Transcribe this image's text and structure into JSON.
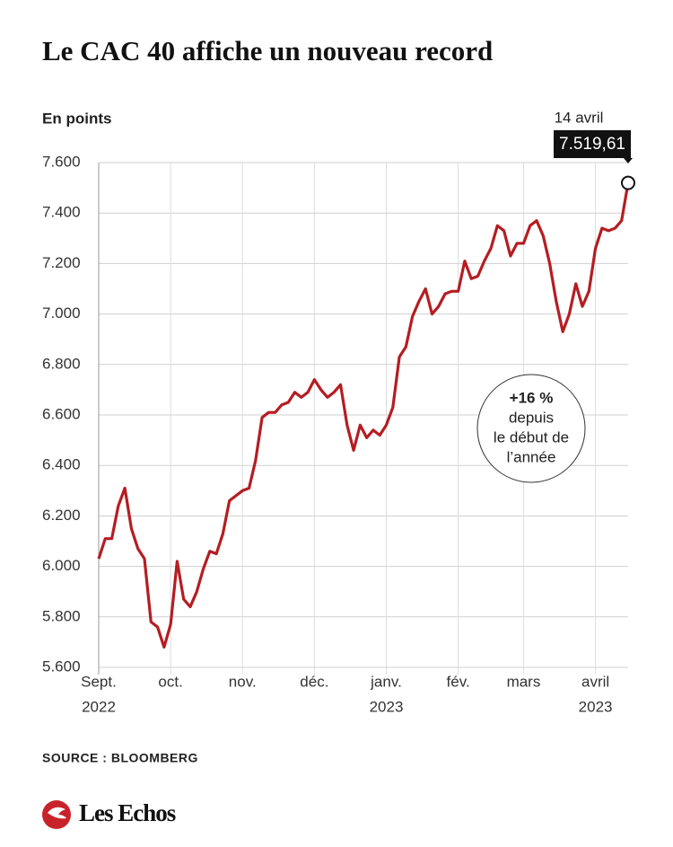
{
  "chart_data": {
    "type": "line",
    "title": "Le CAC 40 affiche un nouveau record",
    "y_label": "En points",
    "source": "SOURCE : BLOOMBERG",
    "brand": "Les Echos",
    "color": "#b51d22",
    "grid": true,
    "ylim": [
      5600,
      7600
    ],
    "yticks": [
      {
        "value": 5600,
        "label": "5.600"
      },
      {
        "value": 5800,
        "label": "5.800"
      },
      {
        "value": 6000,
        "label": "6.000"
      },
      {
        "value": 6200,
        "label": "6.200"
      },
      {
        "value": 6400,
        "label": "6.400"
      },
      {
        "value": 6600,
        "label": "6.600"
      },
      {
        "value": 6800,
        "label": "6.800"
      },
      {
        "value": 7000,
        "label": "7.000"
      },
      {
        "value": 7200,
        "label": "7.200"
      },
      {
        "value": 7400,
        "label": "7.400"
      },
      {
        "value": 7600,
        "label": "7.600"
      }
    ],
    "xlim": [
      0,
      81
    ],
    "xticks": [
      {
        "value": 0,
        "label": "Sept."
      },
      {
        "value": 11,
        "label": "oct."
      },
      {
        "value": 22,
        "label": "nov."
      },
      {
        "value": 33,
        "label": "déc."
      },
      {
        "value": 44,
        "label": "janv."
      },
      {
        "value": 55,
        "label": "fév."
      },
      {
        "value": 65,
        "label": "mars"
      },
      {
        "value": 76,
        "label": "avril"
      }
    ],
    "xtick_years": [
      {
        "value": 0,
        "label": "2022"
      },
      {
        "value": 44,
        "label": "2023"
      },
      {
        "value": 76,
        "label": "2023"
      }
    ],
    "values": [
      6030,
      6110,
      6110,
      6240,
      6310,
      6150,
      6070,
      6030,
      5780,
      5760,
      5680,
      5770,
      6020,
      5870,
      5840,
      5900,
      5990,
      6060,
      6050,
      6130,
      6260,
      6280,
      6300,
      6310,
      6420,
      6590,
      6610,
      6610,
      6640,
      6650,
      6690,
      6670,
      6690,
      6740,
      6700,
      6670,
      6690,
      6720,
      6560,
      6460,
      6560,
      6510,
      6540,
      6520,
      6560,
      6630,
      6830,
      6870,
      6990,
      7050,
      7100,
      7000,
      7030,
      7080,
      7090,
      7090,
      7210,
      7140,
      7150,
      7210,
      7260,
      7350,
      7330,
      7230,
      7280,
      7280,
      7350,
      7370,
      7310,
      7200,
      7050,
      6930,
      7000,
      7120,
      7030,
      7090,
      7260,
      7340,
      7330,
      7340,
      7370,
      7519.61
    ],
    "end_label": {
      "date": "14 avril",
      "value_label": "7.519,61"
    },
    "note": [
      "+16 %",
      "depuis",
      "le début de",
      "l’année"
    ]
  }
}
